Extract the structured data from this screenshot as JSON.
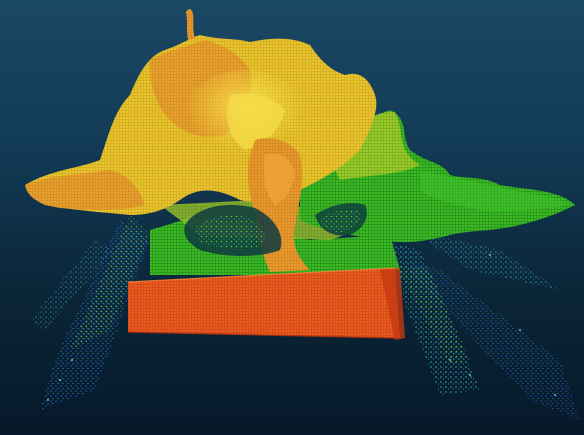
{
  "scene": {
    "description_key": "point-cloud-render",
    "colors": {
      "background_top": "#1b4865",
      "background_bottom": "#06192a",
      "yellow": "#e8c82a",
      "orange": "#e8a030",
      "green": "#3ec02a",
      "cyan": "#39c8c0",
      "blue": "#2856d0",
      "red_orange": "#f05a1e"
    }
  }
}
